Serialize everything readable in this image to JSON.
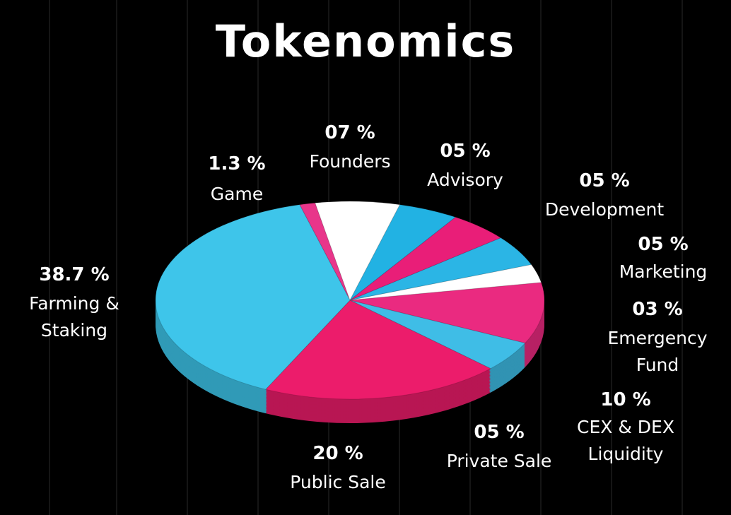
{
  "chart_data": {
    "type": "pie",
    "title": "Tokenomics",
    "categories": [
      "Game",
      "Founders",
      "Advisory",
      "Development",
      "Marketing",
      "Emergency Fund",
      "CEX & DEX Liquidity",
      "Private Sale",
      "Public Sale",
      "Farming & Staking"
    ],
    "values": [
      1.3,
      7,
      5,
      5,
      5,
      3,
      10,
      5,
      20,
      38.7
    ],
    "value_labels": [
      "1.3 %",
      "07 %",
      "05 %",
      "05 %",
      "05 %",
      "03 %",
      "10 %",
      "05 %",
      "20 %",
      "38.7 %"
    ],
    "colors": [
      "#e8358a",
      "#ffffff",
      "#22b2e3",
      "#e91e78",
      "#2bb5e5",
      "#ffffff",
      "#ea2a80",
      "#3fbde6",
      "#ec1c6b",
      "#3ec5ea"
    ]
  }
}
